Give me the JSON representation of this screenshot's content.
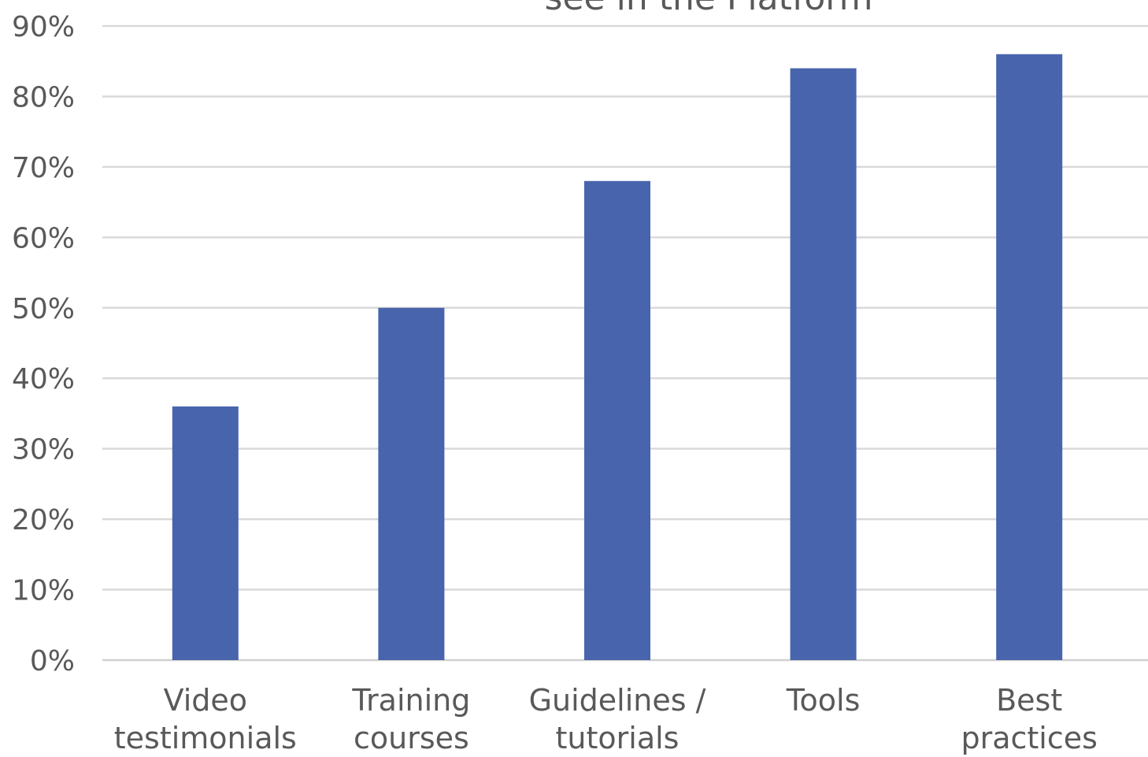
{
  "chart_data": {
    "type": "bar",
    "title": "see in the Platform",
    "categories": [
      [
        "Video",
        "testimonials"
      ],
      [
        "Training",
        "courses"
      ],
      [
        "Guidelines /",
        "tutorials"
      ],
      [
        "Tools"
      ],
      [
        "Best",
        "practices"
      ]
    ],
    "values": [
      36,
      50,
      68,
      84,
      86
    ],
    "ylim": [
      0,
      90
    ],
    "yticks": [
      0,
      10,
      20,
      30,
      40,
      50,
      60,
      70,
      80,
      90
    ],
    "ytick_labels": [
      "0%",
      "10%",
      "20%",
      "30%",
      "40%",
      "50%",
      "60%",
      "70%",
      "80%",
      "90%"
    ],
    "grid": true,
    "bar_color": "#4864ac"
  }
}
